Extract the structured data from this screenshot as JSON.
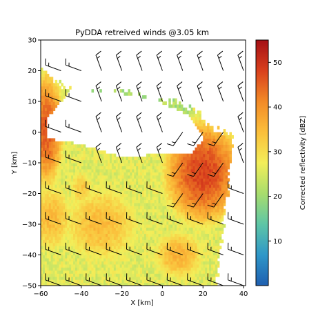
{
  "chart_data": {
    "type": "heatmap",
    "title": "PyDDA retreived winds @3.05 km",
    "xlabel": "X [km]",
    "ylabel": "Y [km]",
    "xlim": [
      -60,
      41
    ],
    "ylim": [
      -50,
      30
    ],
    "xticks": [
      -60,
      -40,
      -20,
      0,
      20,
      40
    ],
    "yticks": [
      -50,
      -40,
      -30,
      -20,
      -10,
      0,
      10,
      20,
      30
    ],
    "colorbar": {
      "label": "Corrected reflectivity [dBZ]",
      "range": [
        0,
        55
      ],
      "ticks": [
        10,
        20,
        30,
        40,
        50
      ],
      "colormap": [
        "#1f5fb0",
        "#2f97c8",
        "#5ec6a6",
        "#a8dd6d",
        "#f3ee59",
        "#fbbf3b",
        "#f28a27",
        "#d9401d",
        "#a50f15"
      ]
    },
    "overlay": "wind barbs",
    "grid_step_km": 1,
    "barb_spacing_km": 10,
    "reflectivity_field": {
      "echo_free_zone": [
        [
          -57,
          4.5
        ],
        [
          -45,
          14
        ],
        [
          -25,
          13
        ],
        [
          -5,
          11
        ],
        [
          12,
          6
        ],
        [
          21,
          -2
        ],
        [
          14,
          -7
        ],
        [
          5,
          -7
        ],
        [
          -20,
          -8
        ],
        [
          -40,
          -4
        ],
        [
          -57,
          -2
        ]
      ],
      "north_edge_y": [
        [
          -60,
          22
        ],
        [
          -48,
          14
        ],
        [
          -40,
          13
        ],
        [
          -20,
          13
        ],
        [
          -5,
          11
        ],
        [
          15,
          8
        ],
        [
          25,
          1
        ],
        [
          40,
          -2
        ]
      ],
      "scan_east_edge_x": [
        [
          -50,
          26
        ],
        [
          -20,
          32
        ],
        [
          0,
          35
        ],
        [
          20,
          38
        ],
        [
          30,
          38
        ]
      ],
      "cores": [
        {
          "x": -57,
          "y": 1,
          "dbz": 46,
          "rx": 4,
          "ry": 9
        },
        {
          "x": 20,
          "y": -13,
          "dbz": 48,
          "rx": 9,
          "ry": 8
        },
        {
          "x": 24,
          "y": -8,
          "dbz": 44,
          "rx": 4,
          "ry": 4
        },
        {
          "x": 12,
          "y": -17,
          "dbz": 42,
          "rx": 4,
          "ry": 3
        },
        {
          "x": 8,
          "y": -40,
          "dbz": 36,
          "rx": 8,
          "ry": 5
        },
        {
          "x": -30,
          "y": -30,
          "dbz": 35,
          "rx": 12,
          "ry": 8
        },
        {
          "x": -55,
          "y": -28,
          "dbz": 35,
          "rx": 7,
          "ry": 7
        },
        {
          "x": -40,
          "y": -18,
          "dbz": 33,
          "rx": 4,
          "ry": 4
        }
      ]
    },
    "wind_barbs": [
      {
        "x": -60,
        "y": 30
      },
      {
        "x": -50,
        "y": 30
      },
      {
        "x": -40,
        "y": 30
      },
      {
        "x": -30,
        "y": 30
      },
      {
        "x": -20,
        "y": 30
      },
      {
        "x": -10,
        "y": 30
      },
      {
        "x": 0,
        "y": 30
      },
      {
        "x": 10,
        "y": 30
      },
      {
        "x": 20,
        "y": 30
      },
      {
        "x": 30,
        "y": 30
      },
      {
        "x": 40,
        "y": 30
      },
      {
        "x": -60,
        "y": 20
      },
      {
        "x": -50,
        "y": 20
      },
      {
        "x": -40,
        "y": 20
      },
      {
        "x": -30,
        "y": 20
      },
      {
        "x": -20,
        "y": 20
      },
      {
        "x": -10,
        "y": 20
      },
      {
        "x": 0,
        "y": 20
      },
      {
        "x": 10,
        "y": 20
      },
      {
        "x": 20,
        "y": 20
      },
      {
        "x": 30,
        "y": 20
      },
      {
        "x": 40,
        "y": 20
      },
      {
        "x": -60,
        "y": 10
      },
      {
        "x": -50,
        "y": 10
      },
      {
        "x": -40,
        "y": 10
      },
      {
        "x": -30,
        "y": 10
      },
      {
        "x": -20,
        "y": 10
      },
      {
        "x": -10,
        "y": 10
      },
      {
        "x": 0,
        "y": 10
      },
      {
        "x": 10,
        "y": 10
      },
      {
        "x": 20,
        "y": 10
      },
      {
        "x": 30,
        "y": 10
      },
      {
        "x": 40,
        "y": 10
      },
      {
        "x": -60,
        "y": 0
      },
      {
        "x": -50,
        "y": 0
      },
      {
        "x": -40,
        "y": 0
      },
      {
        "x": -30,
        "y": 0
      },
      {
        "x": -20,
        "y": 0
      },
      {
        "x": -10,
        "y": 0
      },
      {
        "x": 0,
        "y": 0
      },
      {
        "x": 10,
        "y": 0
      },
      {
        "x": 20,
        "y": 0
      },
      {
        "x": 30,
        "y": 0
      },
      {
        "x": 40,
        "y": 0
      },
      {
        "x": -60,
        "y": -10
      },
      {
        "x": -50,
        "y": -10
      },
      {
        "x": -40,
        "y": -10
      },
      {
        "x": -30,
        "y": -10
      },
      {
        "x": -20,
        "y": -10
      },
      {
        "x": -10,
        "y": -10
      },
      {
        "x": 0,
        "y": -10
      },
      {
        "x": 10,
        "y": -10
      },
      {
        "x": 20,
        "y": -10
      },
      {
        "x": 30,
        "y": -10
      },
      {
        "x": 40,
        "y": -10
      },
      {
        "x": -60,
        "y": -20
      },
      {
        "x": -50,
        "y": -20
      },
      {
        "x": -40,
        "y": -20
      },
      {
        "x": -30,
        "y": -20
      },
      {
        "x": -20,
        "y": -20
      },
      {
        "x": -10,
        "y": -20
      },
      {
        "x": 0,
        "y": -20
      },
      {
        "x": 10,
        "y": -20
      },
      {
        "x": 20,
        "y": -20
      },
      {
        "x": 30,
        "y": -20
      },
      {
        "x": 40,
        "y": -20
      },
      {
        "x": -60,
        "y": -30
      },
      {
        "x": -50,
        "y": -30
      },
      {
        "x": -40,
        "y": -30
      },
      {
        "x": -30,
        "y": -30
      },
      {
        "x": -20,
        "y": -30
      },
      {
        "x": -10,
        "y": -30
      },
      {
        "x": 0,
        "y": -30
      },
      {
        "x": 10,
        "y": -30
      },
      {
        "x": 20,
        "y": -30
      },
      {
        "x": 30,
        "y": -30
      },
      {
        "x": 40,
        "y": -30
      },
      {
        "x": -60,
        "y": -40
      },
      {
        "x": -50,
        "y": -40
      },
      {
        "x": -40,
        "y": -40
      },
      {
        "x": -30,
        "y": -40
      },
      {
        "x": -20,
        "y": -40
      },
      {
        "x": -10,
        "y": -40
      },
      {
        "x": 0,
        "y": -40
      },
      {
        "x": 10,
        "y": -40
      },
      {
        "x": 20,
        "y": -40
      },
      {
        "x": 30,
        "y": -40
      },
      {
        "x": 40,
        "y": -40
      },
      {
        "x": -60,
        "y": -50
      },
      {
        "x": -50,
        "y": -50
      },
      {
        "x": -40,
        "y": -50
      },
      {
        "x": -30,
        "y": -50
      },
      {
        "x": -20,
        "y": -50
      },
      {
        "x": -10,
        "y": -50
      },
      {
        "x": 0,
        "y": -50
      },
      {
        "x": 10,
        "y": -50
      },
      {
        "x": 20,
        "y": -50
      },
      {
        "x": 30,
        "y": -50
      },
      {
        "x": 40,
        "y": -50
      }
    ],
    "wind_from_deg": {
      "north": 340,
      "south_west": 290,
      "storm_core": 215
    }
  }
}
